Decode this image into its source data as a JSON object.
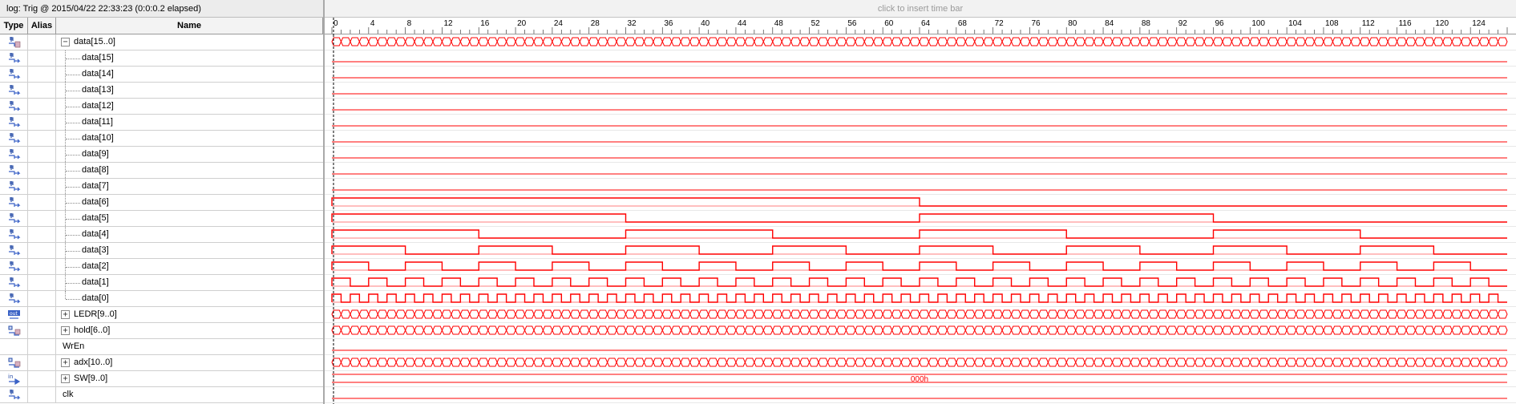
{
  "log_bar": {
    "text": "log: Trig @ 2015/04/22 22:33:23 (0:0:0.2 elapsed)"
  },
  "time_bar": {
    "hint": "click to insert time bar"
  },
  "columns": {
    "type": "Type",
    "alias": "Alias",
    "name": "Name"
  },
  "ruler": {
    "ticks": [
      "0",
      "4",
      "8",
      "12",
      "16",
      "20",
      "24",
      "28",
      "32",
      "36",
      "40",
      "44",
      "48",
      "52",
      "56",
      "60",
      "64",
      "68",
      "72",
      "76",
      "80",
      "84",
      "88",
      "92",
      "96",
      "100",
      "104",
      "108",
      "112",
      "116",
      "120",
      "124"
    ]
  },
  "colors": {
    "wave": "#ff0000",
    "cursor": "#000000",
    "grid": "#d0d0d0"
  },
  "signals": [
    {
      "name": "data[15..0]",
      "icon": "bus-tap-icon",
      "expander": "−",
      "indent": 0,
      "wave": "bus",
      "period": 1,
      "value": ""
    },
    {
      "name": "data[15]",
      "icon": "tap-icon",
      "indent": 1,
      "wave": "low"
    },
    {
      "name": "data[14]",
      "icon": "tap-icon",
      "indent": 1,
      "wave": "low"
    },
    {
      "name": "data[13]",
      "icon": "tap-icon",
      "indent": 1,
      "wave": "low"
    },
    {
      "name": "data[12]",
      "icon": "tap-icon",
      "indent": 1,
      "wave": "low"
    },
    {
      "name": "data[11]",
      "icon": "tap-icon",
      "indent": 1,
      "wave": "low"
    },
    {
      "name": "data[10]",
      "icon": "tap-icon",
      "indent": 1,
      "wave": "low"
    },
    {
      "name": "data[9]",
      "icon": "tap-icon",
      "indent": 1,
      "wave": "low"
    },
    {
      "name": "data[8]",
      "icon": "tap-icon",
      "indent": 1,
      "wave": "low"
    },
    {
      "name": "data[7]",
      "icon": "tap-icon",
      "indent": 1,
      "wave": "low"
    },
    {
      "name": "data[6]",
      "icon": "tap-icon",
      "indent": 1,
      "wave": "clock",
      "half": 64
    },
    {
      "name": "data[5]",
      "icon": "tap-icon",
      "indent": 1,
      "wave": "clock",
      "half": 32
    },
    {
      "name": "data[4]",
      "icon": "tap-icon",
      "indent": 1,
      "wave": "clock",
      "half": 16
    },
    {
      "name": "data[3]",
      "icon": "tap-icon",
      "indent": 1,
      "wave": "clock",
      "half": 8
    },
    {
      "name": "data[2]",
      "icon": "tap-icon",
      "indent": 1,
      "wave": "clock",
      "half": 4
    },
    {
      "name": "data[1]",
      "icon": "tap-icon",
      "indent": 1,
      "wave": "clock",
      "half": 2
    },
    {
      "name": "data[0]",
      "icon": "tap-icon",
      "indent": 1,
      "wave": "clock",
      "half": 1
    },
    {
      "name": "LEDR[9..0]",
      "icon": "output-icon",
      "expander": "+",
      "indent": 0,
      "wave": "bus",
      "period": 1,
      "value": ""
    },
    {
      "name": "hold[6..0]",
      "icon": "register-icon",
      "expander": "+",
      "indent": 0,
      "wave": "bus",
      "period": 1,
      "value": ""
    },
    {
      "name": "WrEn",
      "icon": "",
      "indent": 0,
      "wave": "low"
    },
    {
      "name": "adx[10..0]",
      "icon": "register-icon",
      "expander": "+",
      "indent": 0,
      "wave": "bus",
      "period": 1,
      "value": ""
    },
    {
      "name": "SW[9..0]",
      "icon": "input-icon",
      "expander": "+",
      "indent": 0,
      "wave": "busconst",
      "value": "000h"
    },
    {
      "name": "clk",
      "icon": "tap-icon",
      "indent": 0,
      "wave": "low"
    }
  ]
}
